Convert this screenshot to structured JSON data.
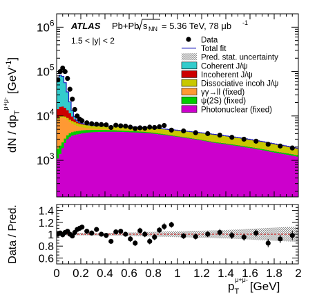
{
  "chart_data": [
    {
      "type": "area",
      "log_y": true,
      "xlim": [
        0,
        2
      ],
      "ylim": [
        150,
        2000000
      ],
      "ylabel": "dN / dp_T^{μ+μ-} [GeV^{-1}]",
      "y_tick_labels": [
        {
          "value": 1000,
          "base": "10",
          "exp": "3"
        },
        {
          "value": 10000,
          "base": "10",
          "exp": "4"
        },
        {
          "value": 100000,
          "base": "10",
          "exp": "5"
        },
        {
          "value": 1000000,
          "base": "10",
          "exp": "6"
        }
      ],
      "experiment_label": "ATLAS",
      "system_label": "Pb+Pb",
      "energy_label": "= 5.36 TeV, 78 μb",
      "energy_exp": "-1",
      "sqrt_label": "s",
      "sqrt_sub": "NN",
      "rapidity_label": "1.5 < |y| < 2",
      "legend": [
        {
          "name": "Data",
          "style": "marker",
          "color": "#000000"
        },
        {
          "name": "Total fit",
          "style": "line",
          "color": "#1f1fbf"
        },
        {
          "name": "Pred. stat. uncertainty",
          "style": "hatch",
          "color": "#a0a0a0"
        },
        {
          "name": "Coherent J/ψ",
          "style": "fill",
          "color": "#33cccc"
        },
        {
          "name": "Incoherent J/ψ",
          "style": "fill",
          "color": "#cc0000"
        },
        {
          "name": "Dissociative incoh J/ψ",
          "style": "fill",
          "color": "#c8c800"
        },
        {
          "name": "γγ→ll (fixed)",
          "style": "fill",
          "color": "#ff9933"
        },
        {
          "name": "ψ(2S) (fixed)",
          "style": "fill",
          "color": "#00cc00"
        },
        {
          "name": "Photonuclear (fixed)",
          "style": "fill",
          "color": "#cc00cc"
        }
      ],
      "bin_width": 0.02,
      "stack_order": [
        "Photonuclear (fixed)",
        "ψ(2S) (fixed)",
        "γγ→ll (fixed)",
        "Dissociative incoh J/ψ",
        "Incoherent J/ψ",
        "Coherent J/ψ"
      ],
      "cumulative_tops": {
        "x": [
          0.0,
          0.02,
          0.04,
          0.06,
          0.08,
          0.1,
          0.12,
          0.14,
          0.16,
          0.18,
          0.2,
          0.25,
          0.3,
          0.4,
          0.5,
          0.6,
          0.7,
          0.8,
          0.9,
          1.0,
          1.1,
          1.2,
          1.3,
          1.4,
          1.5,
          1.6,
          1.7,
          1.8,
          1.9,
          2.0
        ],
        "Photonuclear (fixed)": [
          1000,
          1200,
          1600,
          2200,
          2800,
          3200,
          3500,
          3700,
          3800,
          3900,
          4000,
          4200,
          4300,
          4400,
          4400,
          4300,
          4200,
          4000,
          3700,
          3400,
          3100,
          2800,
          2500,
          2300,
          2100,
          1900,
          1700,
          1500,
          1350,
          1200
        ],
        "ψ(2S) (fixed)": [
          1700,
          2000,
          2300,
          2800,
          3400,
          3900,
          4200,
          4400,
          4500,
          4600,
          4700,
          4800,
          4850,
          4850,
          4750,
          4600,
          4450,
          4200,
          3850,
          3500,
          3200,
          2900,
          2600,
          2400,
          2200,
          2000,
          1800,
          1600,
          1450,
          1300
        ],
        "γγ→ll (fixed)": [
          8000,
          9000,
          9500,
          9300,
          8600,
          7800,
          7000,
          6500,
          6100,
          5800,
          5600,
          5300,
          5150,
          5000,
          4850,
          4700,
          4500,
          4250,
          3900,
          3550,
          3250,
          2950,
          2650,
          2450,
          2250,
          2050,
          1850,
          1650,
          1500,
          1350
        ],
        "Dissociative incoh J/ψ": [
          8400,
          9600,
          10200,
          10000,
          9400,
          8600,
          7900,
          7400,
          7000,
          6700,
          6500,
          6200,
          6050,
          5900,
          5800,
          5650,
          5500,
          5300,
          5000,
          4700,
          4400,
          4100,
          3800,
          3500,
          3200,
          2900,
          2600,
          2300,
          2050,
          1800
        ],
        "Incoherent J/ψ": [
          13000,
          15500,
          16500,
          16000,
          14500,
          12500,
          10500,
          9000,
          7900,
          7200,
          6800,
          6300,
          6100,
          5950,
          5850,
          5700,
          5550,
          5350,
          5050,
          4750,
          4450,
          4150,
          3850,
          3550,
          3250,
          2950,
          2650,
          2350,
          2100,
          1850
        ],
        "Coherent J/ψ": [
          60000,
          80000,
          87000,
          70000,
          45000,
          27000,
          16000,
          11000,
          8500,
          7400,
          6900,
          6350,
          6120,
          5970,
          5870,
          5710,
          5560,
          5360,
          5060,
          4760,
          4460,
          4160,
          3860,
          3560,
          3260,
          2960,
          2660,
          2360,
          2110,
          1860
        ]
      },
      "data_points": {
        "x": [
          0.01,
          0.03,
          0.05,
          0.07,
          0.09,
          0.11,
          0.13,
          0.15,
          0.17,
          0.19,
          0.21,
          0.25,
          0.29,
          0.33,
          0.37,
          0.41,
          0.45,
          0.49,
          0.53,
          0.57,
          0.61,
          0.65,
          0.69,
          0.73,
          0.77,
          0.81,
          0.85,
          0.89,
          0.95,
          1.05,
          1.15,
          1.25,
          1.35,
          1.45,
          1.55,
          1.65,
          1.75,
          1.85,
          1.95
        ],
        "y": [
          65000,
          100000,
          120000,
          100000,
          70000,
          40000,
          24000,
          14000,
          10000,
          8500,
          7800,
          7000,
          6700,
          6500,
          6400,
          6300,
          5500,
          6200,
          6000,
          5900,
          5600,
          5200,
          5400,
          5300,
          5600,
          5500,
          5700,
          6100,
          4800,
          4600,
          4200,
          4000,
          3700,
          3300,
          3000,
          2700,
          2300,
          2100,
          1900
        ]
      }
    },
    {
      "type": "scatter",
      "xlim": [
        0,
        2
      ],
      "ylim": [
        0.5,
        1.5
      ],
      "xlabel": "p_T^{μ+μ-} [GeV]",
      "xlabel_base": "p",
      "xlabel_sub": "T",
      "xlabel_sup": "μ+μ-",
      "xlabel_unit": "[GeV]",
      "ylabel": "Data / Pred.",
      "x_tick_labels": [
        "0",
        "0.2",
        "0.4",
        "0.6",
        "0.8",
        "1",
        "1.2",
        "1.4",
        "1.6",
        "1.8",
        "2"
      ],
      "y_tick_labels": [
        "0.6",
        "0.8",
        "1",
        "1.2",
        "1.4"
      ],
      "reference_line": 1,
      "reference_line_color": "#cc0000",
      "ratio_points": {
        "x": [
          0.01,
          0.03,
          0.05,
          0.07,
          0.09,
          0.11,
          0.13,
          0.15,
          0.17,
          0.19,
          0.21,
          0.25,
          0.29,
          0.33,
          0.37,
          0.41,
          0.45,
          0.49,
          0.53,
          0.57,
          0.61,
          0.65,
          0.69,
          0.73,
          0.77,
          0.81,
          0.85,
          0.89,
          0.95,
          1.05,
          1.15,
          1.25,
          1.35,
          1.45,
          1.55,
          1.65,
          1.75,
          1.85,
          1.95
        ],
        "y": [
          1.0,
          1.02,
          0.99,
          1.03,
          1.05,
          1.0,
          0.97,
          1.03,
          1.08,
          1.1,
          1.12,
          1.05,
          1.02,
          1.08,
          1.0,
          0.98,
          0.88,
          1.04,
          1.05,
          1.0,
          0.92,
          0.85,
          1.06,
          1.0,
          0.88,
          0.95,
          1.07,
          1.13,
          1.16,
          0.97,
          0.96,
          1.0,
          1.03,
          0.98,
          0.95,
          1.02,
          0.85,
          0.92,
          0.98
        ],
        "yerr": [
          0.03,
          0.02,
          0.02,
          0.02,
          0.02,
          0.03,
          0.03,
          0.04,
          0.04,
          0.04,
          0.04,
          0.04,
          0.04,
          0.04,
          0.04,
          0.04,
          0.04,
          0.04,
          0.04,
          0.04,
          0.05,
          0.05,
          0.05,
          0.05,
          0.05,
          0.05,
          0.05,
          0.06,
          0.05,
          0.05,
          0.05,
          0.05,
          0.06,
          0.06,
          0.06,
          0.06,
          0.07,
          0.07,
          0.08
        ]
      }
    }
  ]
}
